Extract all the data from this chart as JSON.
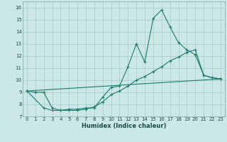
{
  "xlabel": "Humidex (Indice chaleur)",
  "bg_color": "#cce8e6",
  "grid_color": "#aacfcc",
  "line_color": "#1a7a6e",
  "xlim": [
    -0.5,
    23.5
  ],
  "ylim": [
    7,
    16.5
  ],
  "xticks": [
    0,
    1,
    2,
    3,
    4,
    5,
    6,
    7,
    8,
    9,
    10,
    11,
    12,
    13,
    14,
    15,
    16,
    17,
    18,
    19,
    20,
    21,
    22,
    23
  ],
  "yticks": [
    7,
    8,
    9,
    10,
    11,
    12,
    13,
    14,
    15,
    16
  ],
  "series1_x": [
    0,
    1,
    2,
    3,
    4,
    5,
    6,
    7,
    8,
    9,
    10,
    11,
    12,
    13,
    14,
    15,
    16,
    17,
    18,
    19,
    20,
    21,
    22,
    23
  ],
  "series1_y": [
    9.1,
    9.0,
    9.0,
    7.7,
    7.5,
    7.6,
    7.6,
    7.7,
    7.7,
    8.6,
    9.4,
    9.5,
    11.1,
    13.0,
    11.5,
    15.1,
    15.8,
    14.4,
    13.1,
    12.5,
    12.1,
    10.4,
    10.2,
    10.1
  ],
  "series2_x": [
    0,
    2,
    3,
    4,
    5,
    6,
    7,
    8,
    9,
    10,
    11,
    12,
    13,
    14,
    15,
    16,
    17,
    18,
    19,
    20,
    21,
    22,
    23
  ],
  "series2_y": [
    9.1,
    7.7,
    7.5,
    7.5,
    7.5,
    7.5,
    7.6,
    7.8,
    8.2,
    8.8,
    9.1,
    9.5,
    10.0,
    10.3,
    10.7,
    11.1,
    11.6,
    11.9,
    12.3,
    12.5,
    10.4,
    10.2,
    10.1
  ],
  "series3_x": [
    0,
    23
  ],
  "series3_y": [
    9.1,
    10.1
  ]
}
